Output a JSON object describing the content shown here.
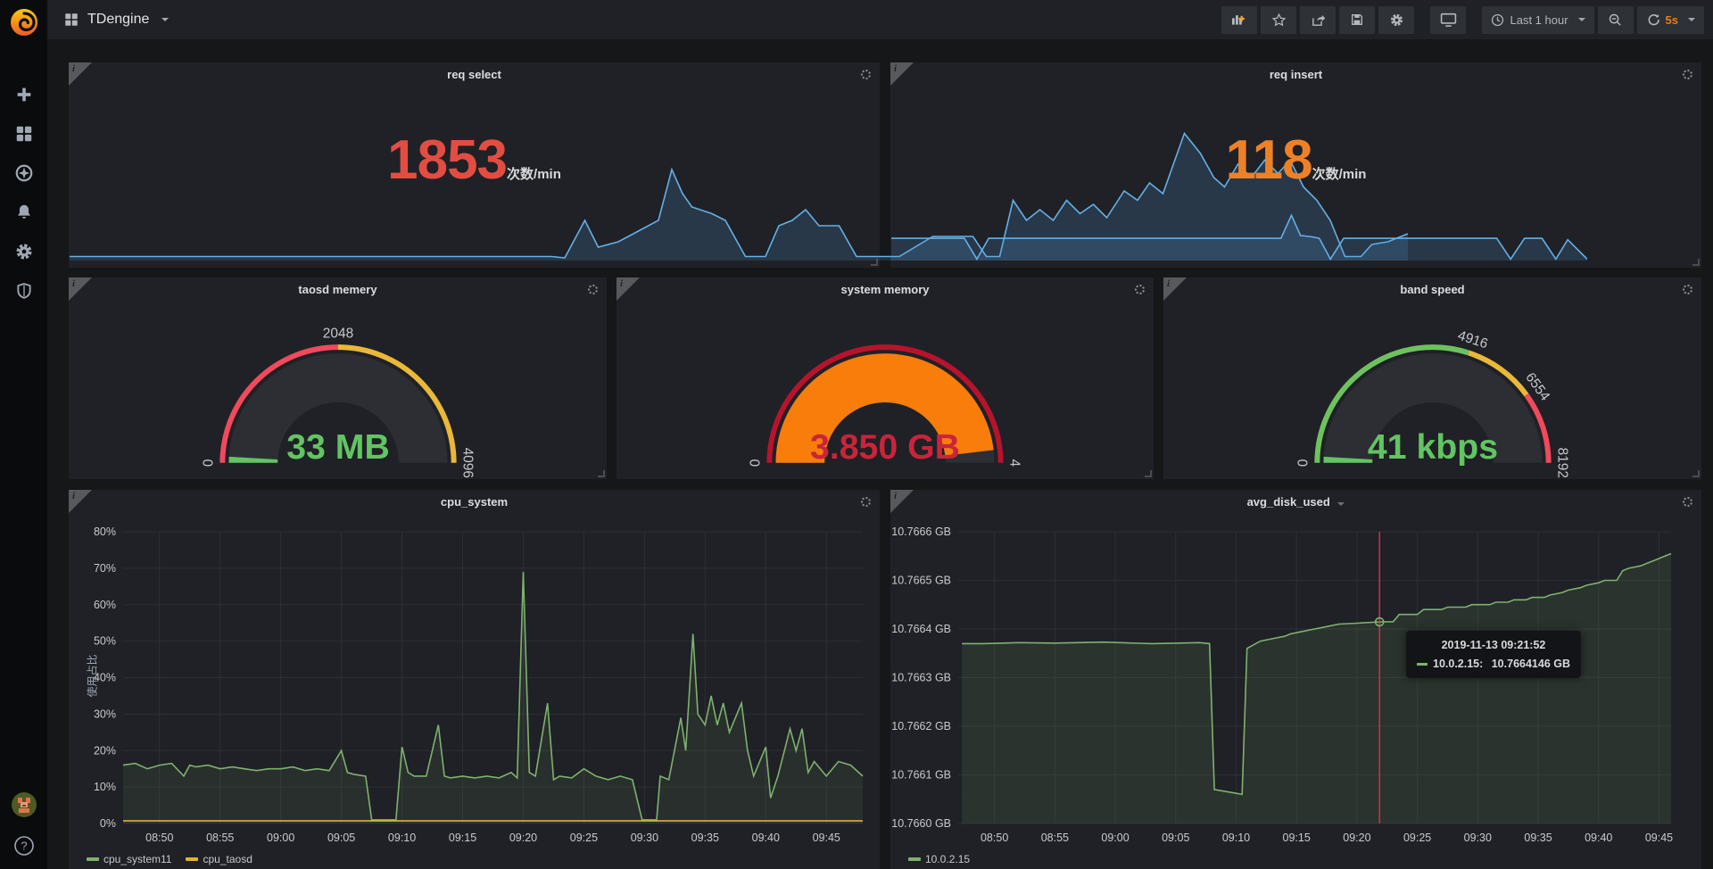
{
  "navbar": {
    "app_title": "TDengine",
    "time_range": "Last 1 hour",
    "refresh_interval": "5s",
    "help_label": "?"
  },
  "colors": {
    "panel_bg": "#1f2126",
    "page_bg": "#161719",
    "grid": "#2e2f34",
    "tick_text": "#c8cacc",
    "blue_line": "#64b0e8",
    "green": "#7eb26d",
    "yellow": "#e5b130",
    "red": "#e24d42",
    "orange": "#ed8128"
  },
  "chart_data": [
    {
      "id": "req_select",
      "type": "area",
      "title": "req select",
      "value": "1853",
      "unit": "次数/min",
      "value_color": "#e24d42",
      "line_color": "#64b0e8",
      "fill_color": "rgba(81,149,212,0.20)",
      "points": [
        [
          0,
          0.03
        ],
        [
          36,
          0.03
        ],
        [
          37,
          0.02
        ],
        [
          38.5,
          0.3
        ],
        [
          39.5,
          0.1
        ],
        [
          41,
          0.14
        ],
        [
          42.5,
          0.22
        ],
        [
          44,
          0.3
        ],
        [
          45,
          0.68
        ],
        [
          45.8,
          0.5
        ],
        [
          46.5,
          0.4
        ],
        [
          48,
          0.35
        ],
        [
          49,
          0.3
        ],
        [
          50.5,
          0.03
        ],
        [
          52,
          0.03
        ],
        [
          53,
          0.26
        ],
        [
          54,
          0.3
        ],
        [
          55,
          0.38
        ],
        [
          56,
          0.26
        ],
        [
          57.5,
          0.26
        ],
        [
          58.8,
          0.03
        ],
        [
          62,
          0.03
        ],
        [
          64.5,
          0.18
        ],
        [
          67.5,
          0.18
        ],
        [
          68.5,
          0.03
        ],
        [
          69.5,
          0.03
        ],
        [
          70.5,
          0.45
        ],
        [
          71.5,
          0.3
        ],
        [
          72.5,
          0.38
        ],
        [
          73.5,
          0.3
        ],
        [
          74.5,
          0.45
        ],
        [
          75.5,
          0.35
        ],
        [
          76.5,
          0.42
        ],
        [
          77.5,
          0.32
        ],
        [
          78.8,
          0.52
        ],
        [
          79.8,
          0.45
        ],
        [
          80.7,
          0.58
        ],
        [
          81.7,
          0.5
        ],
        [
          83.3,
          0.95
        ],
        [
          84.5,
          0.8
        ],
        [
          85.5,
          0.62
        ],
        [
          86.3,
          0.55
        ],
        [
          87.3,
          0.72
        ],
        [
          88.3,
          0.62
        ],
        [
          89.3,
          0.75
        ],
        [
          90.3,
          0.65
        ],
        [
          91.2,
          0.75
        ],
        [
          92.2,
          0.55
        ],
        [
          93.2,
          0.45
        ],
        [
          94.2,
          0.3
        ],
        [
          95.3,
          0.03
        ],
        [
          96.5,
          0.03
        ],
        [
          97.3,
          0.12
        ],
        [
          98.5,
          0.14
        ],
        [
          100,
          0.2
        ]
      ]
    },
    {
      "id": "req_insert",
      "type": "area",
      "title": "req insert",
      "value": "118",
      "unit": "次数/min",
      "value_color": "#ed8128",
      "line_color": "#64b0e8",
      "fill_color": "rgba(81,149,212,0.20)",
      "points": [
        [
          0,
          0.32
        ],
        [
          10.5,
          0.32
        ],
        [
          12.3,
          0.02
        ],
        [
          14,
          0.32
        ],
        [
          56,
          0.32
        ],
        [
          57.5,
          0.65
        ],
        [
          58.8,
          0.36
        ],
        [
          60.5,
          0.34
        ],
        [
          61.5,
          0.32
        ],
        [
          63.1,
          0.02
        ],
        [
          65,
          0.32
        ],
        [
          87,
          0.32
        ],
        [
          89,
          0.02
        ],
        [
          91,
          0.32
        ],
        [
          93.5,
          0.32
        ],
        [
          95.5,
          0.02
        ],
        [
          97.2,
          0.3
        ],
        [
          100,
          0.02
        ]
      ]
    },
    {
      "id": "taosd_memory",
      "type": "gauge",
      "title": "taosd memery",
      "min": 0,
      "max": 4096,
      "value": 33,
      "value_label": "33 MB",
      "value_color": "#62c462",
      "fill_color": "#62c462",
      "thresholds": [
        {
          "from": 0,
          "to": 0.5,
          "color": "#f2495c"
        },
        {
          "from": 0.5,
          "to": 1,
          "color": "#eab839"
        }
      ],
      "labels": [
        {
          "text": "0",
          "f": 0
        },
        {
          "text": "2048",
          "f": 0.5
        },
        {
          "text": "4096",
          "f": 1
        }
      ]
    },
    {
      "id": "system_memory",
      "type": "gauge",
      "title": "system memory",
      "min": 0,
      "max": 4,
      "value": 3.85,
      "value_label": "3.850 GB",
      "value_color": "#c9243a",
      "fill_color": "#f87d0b",
      "thresholds": [
        {
          "from": 0,
          "to": 1,
          "color": "#b8132c"
        }
      ],
      "labels": [
        {
          "text": "0",
          "f": 0
        },
        {
          "text": "4",
          "f": 1
        }
      ]
    },
    {
      "id": "band_speed",
      "type": "gauge",
      "title": "band speed",
      "min": 0,
      "max": 8192,
      "value": 41,
      "value_label": "41 kbps",
      "value_color": "#62c462",
      "fill_color": "#62c462",
      "thresholds": [
        {
          "from": 0,
          "to": 0.6,
          "color": "#6ec25e"
        },
        {
          "from": 0.6,
          "to": 0.8,
          "color": "#eab839"
        },
        {
          "from": 0.8,
          "to": 1,
          "color": "#f2495c"
        }
      ],
      "labels": [
        {
          "text": "0",
          "f": 0
        },
        {
          "text": "4916",
          "f": 0.6
        },
        {
          "text": "6554",
          "f": 0.8
        },
        {
          "text": "8192",
          "f": 1
        }
      ]
    },
    {
      "id": "cpu_system",
      "type": "line",
      "title": "cpu_system",
      "ylabel": "使用占比",
      "x_domain": [
        0,
        61
      ],
      "y_domain": [
        0,
        80
      ],
      "y_ticks": [
        {
          "v": 0,
          "label": "0%"
        },
        {
          "v": 10,
          "label": "10%"
        },
        {
          "v": 20,
          "label": "20%"
        },
        {
          "v": 30,
          "label": "30%"
        },
        {
          "v": 40,
          "label": "40%"
        },
        {
          "v": 50,
          "label": "50%"
        },
        {
          "v": 60,
          "label": "60%"
        },
        {
          "v": 70,
          "label": "70%"
        },
        {
          "v": 80,
          "label": "80%"
        }
      ],
      "x_ticks": [
        {
          "t": 3,
          "label": "08:50"
        },
        {
          "t": 8,
          "label": "08:55"
        },
        {
          "t": 13,
          "label": "09:00"
        },
        {
          "t": 18,
          "label": "09:05"
        },
        {
          "t": 23,
          "label": "09:10"
        },
        {
          "t": 28,
          "label": "09:15"
        },
        {
          "t": 33,
          "label": "09:20"
        },
        {
          "t": 38,
          "label": "09:25"
        },
        {
          "t": 43,
          "label": "09:30"
        },
        {
          "t": 48,
          "label": "09:35"
        },
        {
          "t": 53,
          "label": "09:40"
        },
        {
          "t": 58,
          "label": "09:45"
        }
      ],
      "series": [
        {
          "name": "cpu_system11",
          "color": "#7eb26d",
          "fill": "rgba(126,178,109,0.10)",
          "points": [
            [
              0,
              16
            ],
            [
              1,
              16.5
            ],
            [
              2,
              15
            ],
            [
              3,
              16
            ],
            [
              4,
              16.5
            ],
            [
              5,
              13
            ],
            [
              5.5,
              16
            ],
            [
              6,
              15.5
            ],
            [
              7,
              16
            ],
            [
              8,
              15
            ],
            [
              9,
              15.5
            ],
            [
              10,
              15
            ],
            [
              11,
              14.5
            ],
            [
              12,
              15
            ],
            [
              13,
              15
            ],
            [
              14,
              15.5
            ],
            [
              15,
              14.5
            ],
            [
              16,
              15
            ],
            [
              17,
              14.5
            ],
            [
              18,
              20
            ],
            [
              18.5,
              14
            ],
            [
              19,
              13.5
            ],
            [
              20,
              13
            ],
            [
              20.5,
              1
            ],
            [
              22.5,
              1
            ],
            [
              23,
              21
            ],
            [
              23.5,
              14
            ],
            [
              24,
              13
            ],
            [
              25,
              13
            ],
            [
              26,
              27
            ],
            [
              26.5,
              13
            ],
            [
              27,
              12.5
            ],
            [
              28,
              13
            ],
            [
              29,
              12.5
            ],
            [
              30,
              13
            ],
            [
              31,
              12.5
            ],
            [
              32,
              14
            ],
            [
              32.5,
              12.5
            ],
            [
              33,
              69
            ],
            [
              33.5,
              14
            ],
            [
              34,
              13
            ],
            [
              35,
              33
            ],
            [
              35.5,
              12
            ],
            [
              36,
              13
            ],
            [
              37,
              12.5
            ],
            [
              38,
              15
            ],
            [
              39,
              13
            ],
            [
              40,
              12
            ],
            [
              41,
              13
            ],
            [
              42,
              12
            ],
            [
              42.8,
              1
            ],
            [
              44,
              1
            ],
            [
              44.3,
              13
            ],
            [
              45,
              12
            ],
            [
              46,
              29
            ],
            [
              46.4,
              20
            ],
            [
              47,
              52
            ],
            [
              47.4,
              30
            ],
            [
              48,
              27
            ],
            [
              48.5,
              35
            ],
            [
              49,
              27
            ],
            [
              49.5,
              33
            ],
            [
              50,
              25
            ],
            [
              51,
              33
            ],
            [
              51.5,
              20
            ],
            [
              52,
              13
            ],
            [
              53,
              21
            ],
            [
              53.4,
              7
            ],
            [
              54,
              13
            ],
            [
              55,
              26
            ],
            [
              55.5,
              20
            ],
            [
              56,
              26
            ],
            [
              56.5,
              14
            ],
            [
              57,
              17
            ],
            [
              58,
              13
            ],
            [
              59,
              17
            ],
            [
              60,
              16
            ],
            [
              61,
              13
            ]
          ]
        },
        {
          "name": "cpu_taosd",
          "color": "#e5b130",
          "fill": "none",
          "points": [
            [
              0,
              0.7
            ],
            [
              61,
              0.7
            ]
          ]
        }
      ]
    },
    {
      "id": "avg_disk_used",
      "type": "line",
      "title": "avg_disk_used",
      "x_domain": [
        0,
        59
      ],
      "y_domain": [
        10.766,
        10.7666
      ],
      "y_ticks": [
        {
          "v": 10.766,
          "label": "10.7660 GB"
        },
        {
          "v": 10.7661,
          "label": "10.7661 GB"
        },
        {
          "v": 10.7662,
          "label": "10.7662 GB"
        },
        {
          "v": 10.7663,
          "label": "10.7663 GB"
        },
        {
          "v": 10.7664,
          "label": "10.7664 GB"
        },
        {
          "v": 10.7665,
          "label": "10.7665 GB"
        },
        {
          "v": 10.7666,
          "label": "10.7666 GB"
        }
      ],
      "x_ticks": [
        {
          "t": 3,
          "label": "08:50"
        },
        {
          "t": 8,
          "label": "08:55"
        },
        {
          "t": 13,
          "label": "09:00"
        },
        {
          "t": 18,
          "label": "09:05"
        },
        {
          "t": 23,
          "label": "09:10"
        },
        {
          "t": 28,
          "label": "09:15"
        },
        {
          "t": 33,
          "label": "09:20"
        },
        {
          "t": 38,
          "label": "09:25"
        },
        {
          "t": 43,
          "label": "09:30"
        },
        {
          "t": 48,
          "label": "09:35"
        },
        {
          "t": 53,
          "label": "09:40"
        },
        {
          "t": 58,
          "label": "09:45"
        }
      ],
      "series": [
        {
          "name": "10.0.2.15",
          "color": "#7eb26d",
          "fill": "rgba(126,178,109,0.12)",
          "points": [
            [
              0.3,
              10.76637
            ],
            [
              2,
              10.76637
            ],
            [
              5,
              10.766372
            ],
            [
              8,
              10.766371
            ],
            [
              12,
              10.766373
            ],
            [
              16,
              10.76637
            ],
            [
              20,
              10.766372
            ],
            [
              20.8,
              10.76637
            ],
            [
              21.2,
              10.76607
            ],
            [
              23.5,
              10.76606
            ],
            [
              23.9,
              10.76636
            ],
            [
              25,
              10.766375
            ],
            [
              26,
              10.76638
            ],
            [
              27,
              10.766385
            ],
            [
              27.5,
              10.76639
            ],
            [
              28.5,
              10.766395
            ],
            [
              29.5,
              10.7664
            ],
            [
              30.5,
              10.766405
            ],
            [
              31.5,
              10.76641
            ],
            [
              33,
              10.766412
            ],
            [
              34.87,
              10.7664146
            ],
            [
              36,
              10.766415
            ],
            [
              36.5,
              10.76643
            ],
            [
              38,
              10.76643
            ],
            [
              38.5,
              10.76644
            ],
            [
              40,
              10.76644
            ],
            [
              40.5,
              10.766445
            ],
            [
              42,
              10.766445
            ],
            [
              42.5,
              10.76645
            ],
            [
              44,
              10.76645
            ],
            [
              44.5,
              10.766455
            ],
            [
              45.5,
              10.766455
            ],
            [
              46,
              10.76646
            ],
            [
              47,
              10.76646
            ],
            [
              47.5,
              10.766465
            ],
            [
              48.5,
              10.766465
            ],
            [
              49,
              10.76647
            ],
            [
              50,
              10.766475
            ],
            [
              50.5,
              10.76648
            ],
            [
              51.5,
              10.766485
            ],
            [
              52,
              10.76649
            ],
            [
              53,
              10.766495
            ],
            [
              53.5,
              10.7665
            ],
            [
              54.5,
              10.7665
            ],
            [
              55,
              10.76652
            ],
            [
              55.5,
              10.766525
            ],
            [
              56.5,
              10.76653
            ],
            [
              57,
              10.766535
            ],
            [
              57.5,
              10.76654
            ],
            [
              58,
              10.766545
            ],
            [
              58.5,
              10.76655
            ],
            [
              59,
              10.766555
            ]
          ]
        }
      ],
      "crosshair": {
        "t": 34.87,
        "v": 10.7664146,
        "color": "#e02f44"
      },
      "tooltip": {
        "time": "2019-11-13 09:21:52",
        "series": "10.0.2.15:",
        "value": "10.7664146 GB"
      }
    }
  ]
}
